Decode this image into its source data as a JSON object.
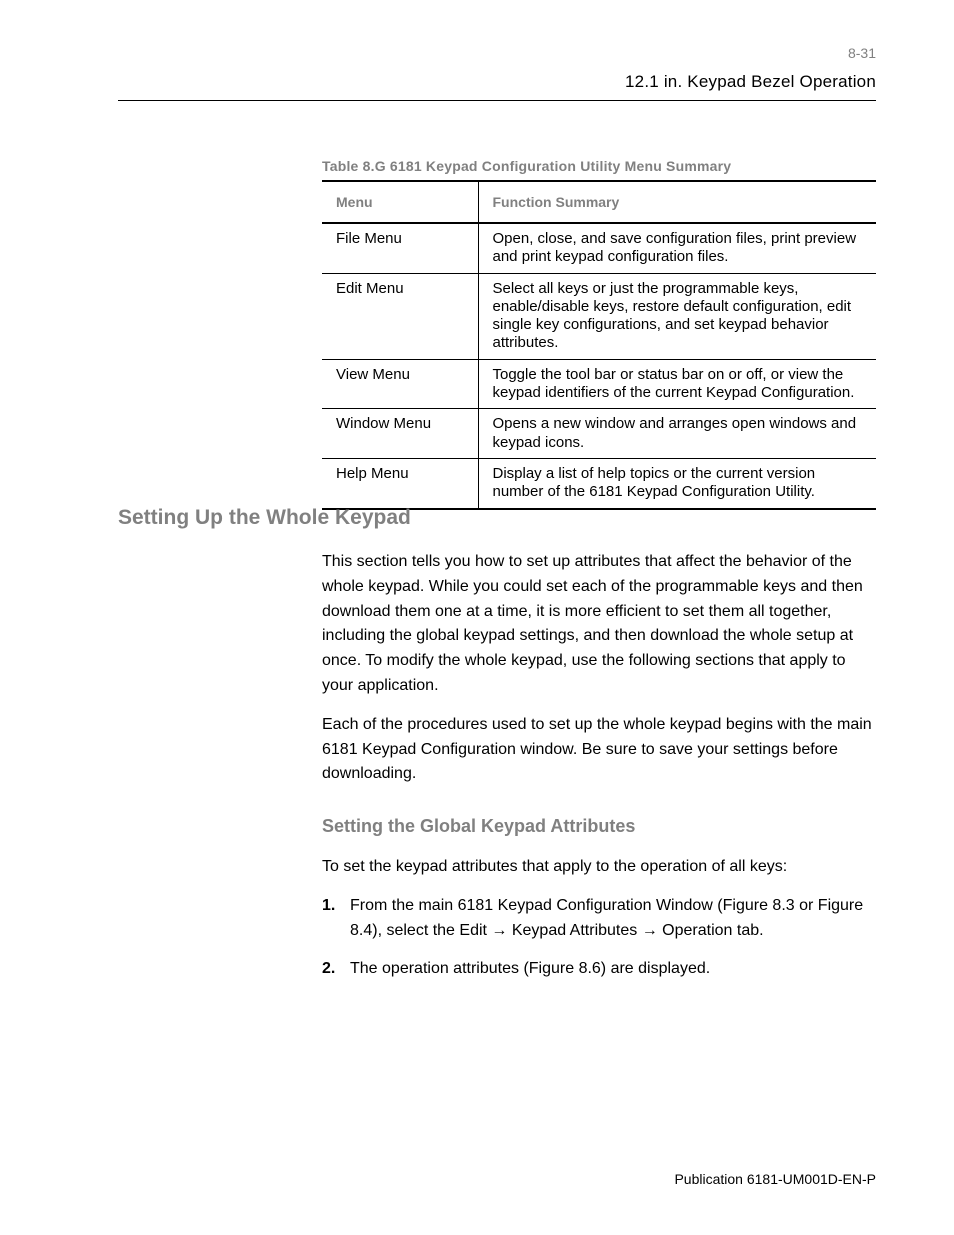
{
  "page": {
    "number": "8-31",
    "header_title": "12.1 in. Keypad Bezel Operation",
    "footer": "Publication 6181-UM001D-EN-P"
  },
  "table_section": {
    "heading": "Table 8.G  6181 Keypad Configuration Utility Menu Summary",
    "columns": [
      "Menu",
      "Function Summary"
    ],
    "rows": [
      {
        "menu": "File Menu",
        "desc": "Open, close, and save configuration files, print preview and print keypad configuration files."
      },
      {
        "menu": "Edit Menu",
        "desc": "Select all keys or just the programmable keys, enable/disable keys, restore default configuration, edit single key configurations, and set keypad behavior attributes."
      },
      {
        "menu": "View Menu",
        "desc": "Toggle the tool bar or status bar on or off, or view the keypad identifiers of the current Keypad Configuration."
      },
      {
        "menu": "Window Menu",
        "desc": "Opens a new window and arranges open windows and keypad icons."
      },
      {
        "menu": "Help Menu",
        "desc": "Display a list of help topics or the current version number of the 6181 Keypad Configuration Utility."
      }
    ]
  },
  "body": {
    "heading": "Setting Up the Whole Keypad",
    "para1": "This section tells you how to set up attributes that affect the behavior of the whole keypad. While you could set each of the programmable keys and then download them one at a time, it is more efficient to set them all together, including the global keypad settings, and then download the whole setup at once. To modify the whole keypad, use the following sections that apply to your application.",
    "para2": "Each of the procedures used to set up the whole keypad begins with the main 6181 Keypad Configuration window. Be sure to save your settings before downloading.",
    "sub_heading": "Setting the Global Keypad Attributes",
    "para3": "To set the keypad attributes that apply to the operation of all keys:",
    "steps": [
      {
        "n": "1.",
        "text_parts": [
          "From the main 6181 Keypad Configuration Window (Figure 8.3 or Figure 8.4), select the Edit ",
          " Keypad Attributes ",
          " Operation tab."
        ]
      },
      {
        "n": "2.",
        "text_parts": [
          "The operation attributes (Figure 8.6) are displayed."
        ]
      }
    ],
    "arrow": "→"
  }
}
